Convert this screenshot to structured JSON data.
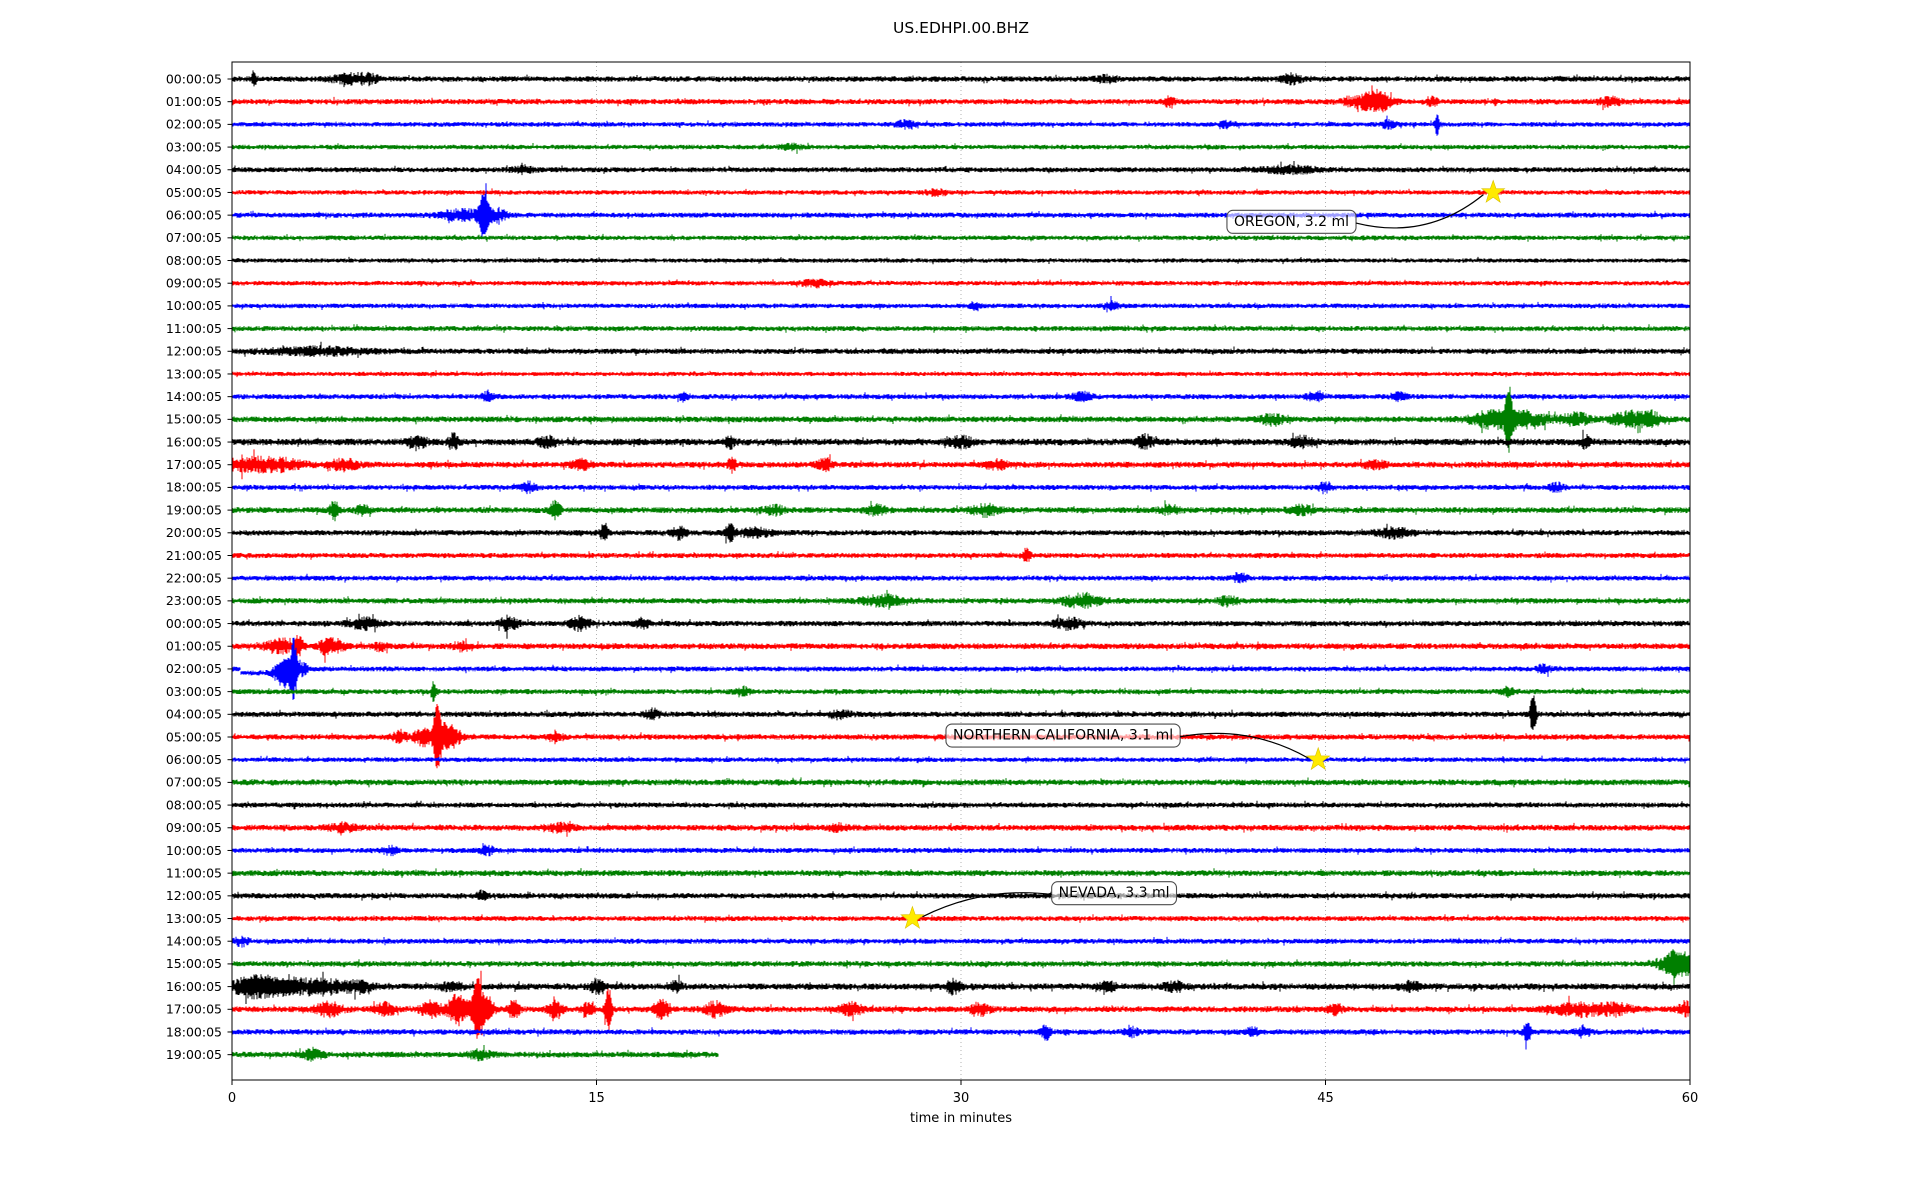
{
  "chart_data": {
    "type": "line",
    "title": "US.EDHPI.00.BHZ",
    "xlabel": "time in minutes",
    "x_ticks": [
      0,
      15,
      30,
      45,
      60
    ],
    "x_range": [
      0,
      60
    ],
    "grid": "vertical-dotted",
    "grid_color": "#a0a0a0",
    "palette": {
      "k": "#000000",
      "r": "#ff0000",
      "b": "#0000ff",
      "g": "#007f00"
    },
    "star_color": "#ffea00",
    "annotation_box_fill": "rgba(255,255,255,0.62)",
    "annotation_box_edge": "#4c4c4c",
    "rows": [
      {
        "t": "00:00:05",
        "c": "k",
        "a": 2.8,
        "b": [
          [
            0.9,
            0.07,
            8
          ],
          [
            4.8,
            0.5,
            4
          ],
          [
            5.6,
            0.3,
            3.5
          ],
          [
            36,
            0.3,
            3
          ],
          [
            43.6,
            0.3,
            4
          ]
        ]
      },
      {
        "t": "01:00:05",
        "c": "r",
        "a": 2.8,
        "b": [
          [
            38.6,
            0.15,
            5
          ],
          [
            46.6,
            0.5,
            7
          ],
          [
            47.3,
            0.3,
            6
          ],
          [
            49.4,
            0.15,
            4
          ],
          [
            56.7,
            0.3,
            4
          ]
        ]
      },
      {
        "t": "02:00:05",
        "c": "b",
        "a": 2.4,
        "b": [
          [
            27.7,
            0.3,
            3
          ],
          [
            41,
            0.2,
            3
          ],
          [
            47.6,
            0.2,
            3.5
          ],
          [
            49.6,
            0.08,
            10
          ]
        ]
      },
      {
        "t": "03:00:05",
        "c": "g",
        "a": 2.4,
        "b": [
          [
            23,
            0.3,
            2.8
          ]
        ]
      },
      {
        "t": "04:00:05",
        "c": "k",
        "a": 2.6,
        "b": [
          [
            12,
            0.3,
            3
          ],
          [
            43.5,
            0.8,
            3.2
          ]
        ]
      },
      {
        "t": "05:00:05",
        "c": "r",
        "a": 2.4,
        "b": [
          [
            29,
            0.3,
            2.8
          ]
        ]
      },
      {
        "t": "06:00:05",
        "c": "b",
        "a": 2.6,
        "b": [
          [
            9.5,
            0.7,
            5
          ],
          [
            10.35,
            0.12,
            18
          ],
          [
            10.8,
            0.35,
            6
          ]
        ]
      },
      {
        "t": "07:00:05",
        "c": "g",
        "a": 2.4,
        "b": []
      },
      {
        "t": "08:00:05",
        "c": "k",
        "a": 2.2,
        "b": []
      },
      {
        "t": "09:00:05",
        "c": "r",
        "a": 2.4,
        "b": [
          [
            24,
            0.4,
            3
          ]
        ]
      },
      {
        "t": "10:00:05",
        "c": "b",
        "a": 2.4,
        "b": [
          [
            30.6,
            0.15,
            4
          ],
          [
            36.2,
            0.2,
            3.5
          ]
        ]
      },
      {
        "t": "11:00:05",
        "c": "g",
        "a": 2.6,
        "b": []
      },
      {
        "t": "12:00:05",
        "c": "k",
        "a": 2.8,
        "b": [
          [
            3.5,
            1.5,
            3.2
          ]
        ]
      },
      {
        "t": "13:00:05",
        "c": "r",
        "a": 2.2,
        "b": []
      },
      {
        "t": "14:00:05",
        "c": "b",
        "a": 2.6,
        "b": [
          [
            10.5,
            0.15,
            4
          ],
          [
            18.6,
            0.15,
            4
          ],
          [
            35,
            0.3,
            3.5
          ],
          [
            44.6,
            0.25,
            4
          ],
          [
            48,
            0.2,
            4
          ]
        ]
      },
      {
        "t": "15:00:05",
        "c": "g",
        "a": 3.0,
        "b": [
          [
            42.8,
            0.35,
            5
          ],
          [
            51.8,
            0.6,
            7
          ],
          [
            52.55,
            0.1,
            24
          ],
          [
            53.2,
            0.7,
            7
          ],
          [
            55.3,
            0.4,
            6
          ],
          [
            57.5,
            0.5,
            7
          ],
          [
            58.4,
            0.3,
            6
          ]
        ]
      },
      {
        "t": "16:00:05",
        "c": "k",
        "a": 3.4,
        "b": [
          [
            7.6,
            0.3,
            6
          ],
          [
            9.1,
            0.15,
            7
          ],
          [
            13,
            0.3,
            4
          ],
          [
            20.5,
            0.15,
            5
          ],
          [
            30,
            0.3,
            5
          ],
          [
            37.6,
            0.25,
            6
          ],
          [
            44,
            0.3,
            5
          ],
          [
            55.7,
            0.15,
            6
          ]
        ]
      },
      {
        "t": "17:00:05",
        "c": "r",
        "a": 3.0,
        "b": [
          [
            0.5,
            0.7,
            6
          ],
          [
            2,
            0.7,
            5
          ],
          [
            4.6,
            0.4,
            5
          ],
          [
            14.4,
            0.3,
            4
          ],
          [
            20.6,
            0.12,
            7
          ],
          [
            24.4,
            0.2,
            6
          ],
          [
            31.5,
            0.3,
            4
          ],
          [
            47,
            0.3,
            4
          ]
        ]
      },
      {
        "t": "18:00:05",
        "c": "b",
        "a": 2.6,
        "b": [
          [
            12.2,
            0.2,
            4.5
          ],
          [
            45,
            0.2,
            5
          ],
          [
            54.5,
            0.2,
            4
          ]
        ]
      },
      {
        "t": "19:00:05",
        "c": "g",
        "a": 3.0,
        "b": [
          [
            4.2,
            0.12,
            9
          ],
          [
            5.4,
            0.2,
            4
          ],
          [
            13.3,
            0.15,
            8
          ],
          [
            22.3,
            0.3,
            4
          ],
          [
            26.5,
            0.3,
            4
          ],
          [
            31,
            0.4,
            5
          ],
          [
            38.6,
            0.3,
            4
          ],
          [
            44,
            0.3,
            4
          ]
        ]
      },
      {
        "t": "20:00:05",
        "c": "k",
        "a": 2.8,
        "b": [
          [
            15.3,
            0.12,
            7
          ],
          [
            18.4,
            0.2,
            6
          ],
          [
            20.5,
            0.12,
            9
          ],
          [
            21.5,
            0.5,
            4
          ],
          [
            47.8,
            0.5,
            4.5
          ]
        ]
      },
      {
        "t": "21:00:05",
        "c": "r",
        "a": 2.6,
        "b": [
          [
            32.7,
            0.1,
            8
          ]
        ]
      },
      {
        "t": "22:00:05",
        "c": "b",
        "a": 2.6,
        "b": [
          [
            41.5,
            0.2,
            4
          ]
        ]
      },
      {
        "t": "23:00:05",
        "c": "g",
        "a": 2.8,
        "b": [
          [
            26.8,
            0.6,
            5
          ],
          [
            35,
            0.6,
            6
          ],
          [
            41,
            0.3,
            4
          ]
        ]
      },
      {
        "t": "00:00:05",
        "c": "k",
        "a": 2.8,
        "b": [
          [
            5.4,
            0.4,
            5
          ],
          [
            11.4,
            0.25,
            7
          ],
          [
            14.3,
            0.3,
            6
          ],
          [
            16.9,
            0.2,
            4
          ],
          [
            34.4,
            0.4,
            5
          ]
        ]
      },
      {
        "t": "01:00:05",
        "c": "r",
        "a": 3.0,
        "b": [
          [
            1.7,
            0.3,
            5
          ],
          [
            2.3,
            0.3,
            5
          ],
          [
            2.75,
            0.15,
            7
          ],
          [
            3.9,
            0.2,
            8
          ],
          [
            4.4,
            0.2,
            5
          ],
          [
            6.1,
            0.2,
            3.5
          ],
          [
            9.4,
            0.2,
            4
          ]
        ]
      },
      {
        "t": "02:00:05",
        "c": "b",
        "a": 2.6,
        "b": [
          [
            2.0,
            0.25,
            8
          ],
          [
            2.3,
            0.2,
            10
          ],
          [
            2.55,
            0.08,
            26
          ],
          [
            2.85,
            0.2,
            6
          ],
          [
            54,
            0.2,
            4
          ]
        ],
        "off": [
          [
            0.35,
            2.45,
            4
          ]
        ]
      },
      {
        "t": "03:00:05",
        "c": "g",
        "a": 2.6,
        "b": [
          [
            8.3,
            0.08,
            10
          ],
          [
            21,
            0.2,
            4
          ],
          [
            52.5,
            0.2,
            4
          ]
        ]
      },
      {
        "t": "04:00:05",
        "c": "k",
        "a": 2.8,
        "b": [
          [
            17.3,
            0.2,
            5
          ],
          [
            25,
            0.3,
            4
          ],
          [
            53.55,
            0.1,
            17
          ]
        ]
      },
      {
        "t": "05:00:05",
        "c": "r",
        "a": 2.8,
        "b": [
          [
            6.9,
            0.2,
            6
          ],
          [
            7.9,
            0.3,
            8
          ],
          [
            8.45,
            0.1,
            30
          ],
          [
            8.75,
            0.25,
            12
          ],
          [
            9.2,
            0.2,
            6
          ],
          [
            13.3,
            0.2,
            5
          ]
        ]
      },
      {
        "t": "06:00:05",
        "c": "b",
        "a": 2.4,
        "b": []
      },
      {
        "t": "07:00:05",
        "c": "g",
        "a": 3.0,
        "b": []
      },
      {
        "t": "08:00:05",
        "c": "k",
        "a": 2.6,
        "b": []
      },
      {
        "t": "09:00:05",
        "c": "r",
        "a": 3.0,
        "b": [
          [
            4.5,
            0.4,
            3.5
          ],
          [
            13.5,
            0.4,
            3.5
          ],
          [
            25,
            0.3,
            3
          ]
        ]
      },
      {
        "t": "10:00:05",
        "c": "b",
        "a": 2.6,
        "b": [
          [
            6.5,
            0.2,
            4
          ],
          [
            10.5,
            0.2,
            4
          ]
        ]
      },
      {
        "t": "11:00:05",
        "c": "g",
        "a": 3.0,
        "b": []
      },
      {
        "t": "12:00:05",
        "c": "k",
        "a": 2.8,
        "b": [
          [
            10.3,
            0.15,
            4
          ]
        ]
      },
      {
        "t": "13:00:05",
        "c": "r",
        "a": 2.6,
        "b": []
      },
      {
        "t": "14:00:05",
        "c": "b",
        "a": 2.6,
        "b": [
          [
            0.4,
            0.2,
            4
          ]
        ]
      },
      {
        "t": "15:00:05",
        "c": "g",
        "a": 2.8,
        "b": [
          [
            59.5,
            0.5,
            13
          ]
        ]
      },
      {
        "t": "16:00:05",
        "c": "k",
        "a": 3.2,
        "b": [
          [
            0.8,
            0.6,
            8
          ],
          [
            2.2,
            0.8,
            7
          ],
          [
            3.8,
            0.6,
            6
          ],
          [
            5.2,
            0.4,
            5
          ],
          [
            9,
            0.3,
            4
          ],
          [
            15,
            0.2,
            6
          ],
          [
            18.3,
            0.15,
            6
          ],
          [
            29.7,
            0.2,
            7
          ],
          [
            36,
            0.3,
            4
          ],
          [
            38.8,
            0.3,
            4
          ],
          [
            48.5,
            0.3,
            4
          ]
        ]
      },
      {
        "t": "17:00:05",
        "c": "r",
        "a": 3.0,
        "b": [
          [
            4,
            0.4,
            6
          ],
          [
            6.3,
            0.3,
            6
          ],
          [
            8.2,
            0.3,
            8
          ],
          [
            9.3,
            0.3,
            14
          ],
          [
            10.1,
            0.15,
            28
          ],
          [
            10.5,
            0.2,
            12
          ],
          [
            11.6,
            0.15,
            10
          ],
          [
            13.3,
            0.2,
            8
          ],
          [
            14.6,
            0.2,
            6
          ],
          [
            15.5,
            0.1,
            22
          ],
          [
            17.7,
            0.25,
            8
          ],
          [
            19.9,
            0.3,
            7
          ],
          [
            25.5,
            0.3,
            6
          ],
          [
            30.8,
            0.3,
            5
          ],
          [
            45.4,
            0.2,
            5
          ],
          [
            55.5,
            0.8,
            6
          ],
          [
            57,
            0.4,
            5
          ],
          [
            59.8,
            0.2,
            7
          ]
        ]
      },
      {
        "t": "18:00:05",
        "c": "b",
        "a": 2.8,
        "b": [
          [
            33.5,
            0.12,
            7
          ],
          [
            37,
            0.2,
            4
          ],
          [
            42,
            0.15,
            5
          ],
          [
            53.3,
            0.12,
            9
          ],
          [
            55.6,
            0.2,
            5
          ]
        ]
      },
      {
        "t": "19:00:05",
        "c": "g",
        "a": 3.0,
        "b": [
          [
            3.3,
            0.3,
            5
          ],
          [
            10.2,
            0.3,
            4
          ]
        ],
        "end": 20
      }
    ],
    "events": [
      {
        "label": "OREGON, 3.2 ml",
        "star_row": 5,
        "star_minute": 51.9,
        "box_minute": 43.6,
        "box_row": 6.26,
        "side": "right",
        "curve": -0.25
      },
      {
        "label": "NORTHERN CALIFORNIA, 3.1 ml",
        "star_row": 30,
        "star_minute": 44.7,
        "box_minute": 34.2,
        "box_row": 28.9,
        "side": "right",
        "curve": 0.18
      },
      {
        "label": "NEVADA, 3.3 ml",
        "star_row": 37,
        "star_minute": 28.0,
        "box_minute": 36.3,
        "box_row": 35.85,
        "side": "left",
        "curve": -0.15
      }
    ]
  }
}
